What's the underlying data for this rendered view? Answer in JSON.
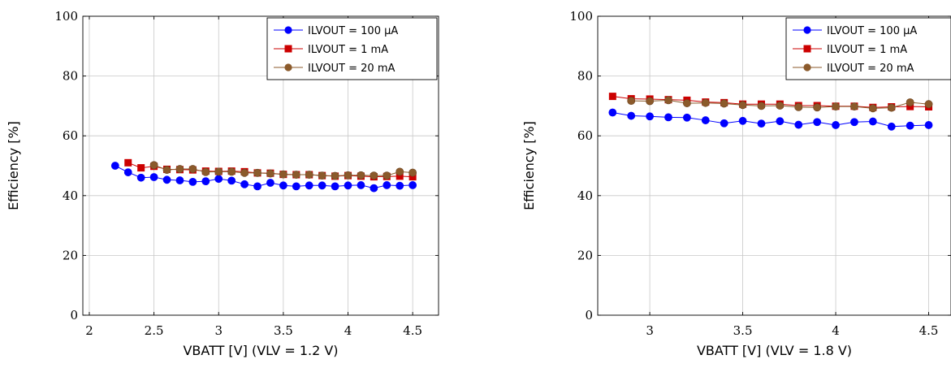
{
  "chart_data": [
    {
      "type": "line",
      "xlabel": "VBATT [V] (VLV = 1.2 V)",
      "ylabel": "Efficiency [%]",
      "xlim": [
        1.95,
        4.7
      ],
      "ylim": [
        0,
        100
      ],
      "xticks": [
        2,
        2.5,
        3,
        3.5,
        4,
        4.5
      ],
      "yticks": [
        0,
        20,
        40,
        60,
        80,
        100
      ],
      "grid": true,
      "legend_position": "top-right",
      "series": [
        {
          "name": "ILVOUT = 100 µA",
          "color": "#0000ff",
          "marker": "circle",
          "points": [
            [
              2.2,
              50
            ],
            [
              2.3,
              47.8
            ],
            [
              2.4,
              46
            ],
            [
              2.5,
              46.2
            ],
            [
              2.6,
              45.3
            ],
            [
              2.7,
              45.1
            ],
            [
              2.8,
              44.6
            ],
            [
              2.9,
              44.8
            ],
            [
              3.0,
              45.6
            ],
            [
              3.1,
              45
            ],
            [
              3.2,
              43.8
            ],
            [
              3.3,
              43.1
            ],
            [
              3.4,
              44.3
            ],
            [
              3.5,
              43.4
            ],
            [
              3.6,
              43.1
            ],
            [
              3.7,
              43.4
            ],
            [
              3.8,
              43.4
            ],
            [
              3.9,
              43.1
            ],
            [
              4.0,
              43.4
            ],
            [
              4.1,
              43.5
            ],
            [
              4.2,
              42.5
            ],
            [
              4.3,
              43.5
            ],
            [
              4.4,
              43.3
            ],
            [
              4.5,
              43.5
            ]
          ]
        },
        {
          "name": "ILVOUT = 1 mA",
          "color": "#cc0000",
          "marker": "square",
          "points": [
            [
              2.3,
              51
            ],
            [
              2.4,
              49.3
            ],
            [
              2.5,
              49.8
            ],
            [
              2.6,
              48.8
            ],
            [
              2.7,
              48.7
            ],
            [
              2.8,
              48.6
            ],
            [
              2.9,
              48.2
            ],
            [
              3.0,
              48.1
            ],
            [
              3.1,
              48.2
            ],
            [
              3.2,
              48
            ],
            [
              3.3,
              47.6
            ],
            [
              3.4,
              47.5
            ],
            [
              3.5,
              47.1
            ],
            [
              3.6,
              47
            ],
            [
              3.7,
              47
            ],
            [
              3.8,
              46.7
            ],
            [
              3.9,
              46.5
            ],
            [
              4.0,
              46.7
            ],
            [
              4.1,
              46.5
            ],
            [
              4.2,
              46.3
            ],
            [
              4.3,
              46.4
            ],
            [
              4.4,
              46.5
            ],
            [
              4.5,
              46.3
            ]
          ]
        },
        {
          "name": "ILVOUT = 20 mA",
          "color": "#8b5a2b",
          "marker": "circle",
          "points": [
            [
              2.5,
              50.2
            ],
            [
              2.6,
              48.6
            ],
            [
              2.7,
              48.9
            ],
            [
              2.8,
              48.9
            ],
            [
              2.9,
              47.9
            ],
            [
              3.0,
              48
            ],
            [
              3.1,
              48
            ],
            [
              3.2,
              47.6
            ],
            [
              3.3,
              47.6
            ],
            [
              3.4,
              47.4
            ],
            [
              3.5,
              47.1
            ],
            [
              3.6,
              47
            ],
            [
              3.7,
              47
            ],
            [
              3.8,
              46.7
            ],
            [
              3.9,
              46.6
            ],
            [
              4.0,
              46.8
            ],
            [
              4.1,
              46.8
            ],
            [
              4.2,
              46.7
            ],
            [
              4.3,
              46.7
            ],
            [
              4.4,
              48
            ],
            [
              4.5,
              47.7
            ]
          ]
        }
      ]
    },
    {
      "type": "line",
      "xlabel": "VBATT [V] (VLV = 1.8 V)",
      "ylabel": "Efficiency [%]",
      "xlim": [
        2.72,
        4.62
      ],
      "ylim": [
        0,
        100
      ],
      "xticks": [
        3,
        3.5,
        4,
        4.5
      ],
      "yticks": [
        0,
        20,
        40,
        60,
        80,
        100
      ],
      "grid": true,
      "legend_position": "top-right",
      "series": [
        {
          "name": "ILVOUT = 100 µA",
          "color": "#0000ff",
          "marker": "circle",
          "points": [
            [
              2.8,
              67.8
            ],
            [
              2.9,
              66.7
            ],
            [
              3.0,
              66.5
            ],
            [
              3.1,
              66.2
            ],
            [
              3.2,
              66.1
            ],
            [
              3.3,
              65.2
            ],
            [
              3.4,
              64.2
            ],
            [
              3.5,
              65
            ],
            [
              3.6,
              64.1
            ],
            [
              3.7,
              64.9
            ],
            [
              3.8,
              63.7
            ],
            [
              3.9,
              64.6
            ],
            [
              4.0,
              63.6
            ],
            [
              4.1,
              64.6
            ],
            [
              4.2,
              64.8
            ],
            [
              4.3,
              63.1
            ],
            [
              4.4,
              63.4
            ],
            [
              4.5,
              63.6
            ]
          ]
        },
        {
          "name": "ILVOUT = 1 mA",
          "color": "#cc0000",
          "marker": "square",
          "points": [
            [
              2.8,
              73.2
            ],
            [
              2.9,
              72.4
            ],
            [
              3.0,
              72.3
            ],
            [
              3.1,
              72.1
            ],
            [
              3.2,
              71.9
            ],
            [
              3.3,
              71.3
            ],
            [
              3.4,
              71.1
            ],
            [
              3.5,
              70.6
            ],
            [
              3.6,
              70.6
            ],
            [
              3.7,
              70.6
            ],
            [
              3.8,
              70.1
            ],
            [
              3.9,
              70.1
            ],
            [
              4.0,
              69.9
            ],
            [
              4.1,
              69.9
            ],
            [
              4.2,
              69.5
            ],
            [
              4.3,
              69.7
            ],
            [
              4.4,
              69.8
            ],
            [
              4.5,
              69.7
            ]
          ]
        },
        {
          "name": "ILVOUT = 20 mA",
          "color": "#8b5a2b",
          "marker": "circle",
          "points": [
            [
              2.9,
              71.7
            ],
            [
              3.0,
              71.6
            ],
            [
              3.1,
              71.9
            ],
            [
              3.2,
              70.9
            ],
            [
              3.3,
              71
            ],
            [
              3.4,
              70.8
            ],
            [
              3.5,
              70.3
            ],
            [
              3.6,
              70
            ],
            [
              3.7,
              70.1
            ],
            [
              3.8,
              69.6
            ],
            [
              3.9,
              69.5
            ],
            [
              4.0,
              69.8
            ],
            [
              4.1,
              69.8
            ],
            [
              4.2,
              69.2
            ],
            [
              4.3,
              69.4
            ],
            [
              4.4,
              71.2
            ],
            [
              4.5,
              70.6
            ]
          ]
        }
      ]
    }
  ]
}
